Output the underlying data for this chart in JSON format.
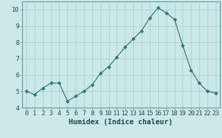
{
  "x": [
    0,
    1,
    2,
    3,
    4,
    5,
    6,
    7,
    8,
    9,
    10,
    11,
    12,
    13,
    14,
    15,
    16,
    17,
    18,
    19,
    20,
    21,
    22,
    23
  ],
  "y": [
    5.0,
    4.8,
    5.2,
    5.5,
    5.5,
    4.4,
    4.7,
    5.0,
    5.4,
    6.1,
    6.5,
    7.1,
    7.7,
    8.2,
    8.7,
    9.5,
    10.1,
    9.8,
    9.4,
    7.8,
    6.3,
    5.5,
    5.0,
    4.9
  ],
  "line_color": "#2d7a6e",
  "marker": "D",
  "marker_size": 2.5,
  "bg_color": "#cce8e8",
  "grid_color": "#aad0d0",
  "xlabel": "Humidex (Indice chaleur)",
  "ylim": [
    4,
    10.5
  ],
  "xlim": [
    -0.5,
    23.5
  ],
  "yticks": [
    4,
    5,
    6,
    7,
    8,
    9,
    10
  ],
  "xticks": [
    0,
    1,
    2,
    3,
    4,
    5,
    6,
    7,
    8,
    9,
    10,
    11,
    12,
    13,
    14,
    15,
    16,
    17,
    18,
    19,
    20,
    21,
    22,
    23
  ],
  "tick_fontsize": 6.5,
  "xlabel_fontsize": 7.5
}
